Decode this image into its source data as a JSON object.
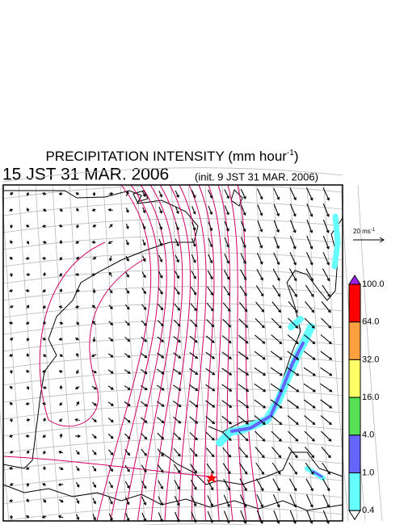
{
  "title": {
    "text": "PRECIPITATION INTENSITY (mm hour",
    "superscript": "-1",
    "suffix": ")"
  },
  "valid_time": "15 JST 31 MAR. 2006",
  "init_time": "(init. 9 JST 31 MAR. 2006)",
  "vector_scale": {
    "text": "20 ms",
    "superscript": "-1"
  },
  "colorbar": {
    "levels": [
      {
        "value": 100,
        "label": "100.0"
      },
      {
        "value": 64,
        "label": "64.0"
      },
      {
        "value": 32,
        "label": "32.0"
      },
      {
        "value": 16,
        "label": "16.0"
      },
      {
        "value": 4,
        "label": "4.0"
      },
      {
        "value": 1,
        "label": "1.0"
      },
      {
        "value": 0.4,
        "label": "0.4"
      }
    ],
    "colors": [
      "#ff0000",
      "#ffa040",
      "#ffff66",
      "#55e055",
      "#6464ff",
      "#66ffff"
    ],
    "over_color": "#a020f0",
    "under_color": "#ffffff"
  }
}
